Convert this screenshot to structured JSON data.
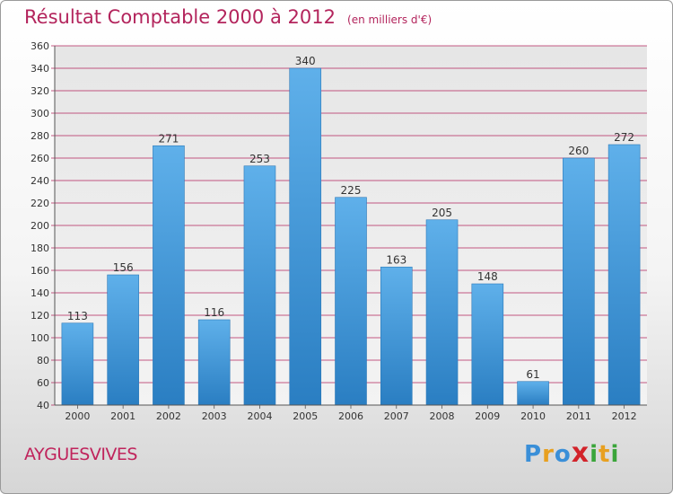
{
  "header": {
    "title": "Résultat Comptable 2000 à 2012",
    "subtitle": "(en milliers d'€)"
  },
  "chart_data": {
    "type": "bar",
    "categories": [
      "2000",
      "2001",
      "2002",
      "2003",
      "2004",
      "2005",
      "2006",
      "2007",
      "2008",
      "2009",
      "2010",
      "2011",
      "2012"
    ],
    "values": [
      113,
      156,
      271,
      116,
      253,
      340,
      225,
      163,
      205,
      148,
      61,
      260,
      272
    ],
    "title": "Résultat Comptable 2000 à 2012",
    "ylim": [
      40,
      360
    ],
    "yticks": [
      40,
      60,
      80,
      100,
      120,
      140,
      160,
      180,
      200,
      220,
      240,
      260,
      280,
      300,
      320,
      340,
      360
    ],
    "grid": true,
    "bar_color": "#3f95d8",
    "grid_color": "#b3245c"
  },
  "footer": {
    "town": "AYGUESVIVES",
    "logo_letters": [
      "P",
      "r",
      "o",
      "x",
      "i",
      "t",
      "i"
    ],
    "logo_colors": [
      "#3a8fd8",
      "#e8a020",
      "#3a8fd8",
      "#d2232a",
      "#3aa53a",
      "#e8a020",
      "#3aa53a"
    ]
  }
}
